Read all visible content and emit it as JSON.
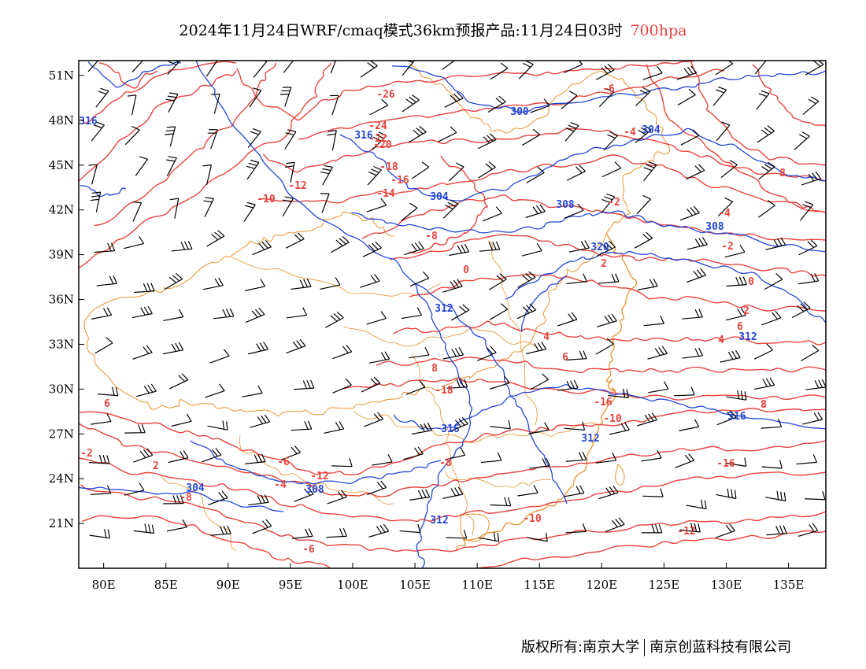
{
  "title": {
    "main": "2024年11月24日WRF/cmaq模式36km预报产品:11月24日03时",
    "level": "700hpa"
  },
  "footer": {
    "copyright": "版权所有:南京大学",
    "company": "南京创蓝科技有限公司"
  },
  "colors": {
    "temperature": "#e8423c",
    "geopotential": "#2446d8",
    "border": "#e8922c",
    "wind": "#000000"
  },
  "map": {
    "lon_range": [
      78,
      138
    ],
    "lat_range": [
      18,
      52
    ],
    "lon_ticks": [
      "80E",
      "85E",
      "90E",
      "95E",
      "100E",
      "105E",
      "110E",
      "115E",
      "120E",
      "125E",
      "130E",
      "135E"
    ],
    "lat_ticks": [
      "51N",
      "48N",
      "45N",
      "42N",
      "39N",
      "36N",
      "33N",
      "30N",
      "27N",
      "24N",
      "21N"
    ],
    "temperature_labels": [
      "-26",
      "-24",
      "-22",
      "-20",
      "-18",
      "-16",
      "-14",
      "-12",
      "-10",
      "-8",
      "-6",
      "-4",
      "-2",
      "0",
      "2",
      "4",
      "6",
      "8",
      "-18",
      "-16",
      "-10",
      "-12",
      "-8",
      "-6",
      "-4",
      "-2",
      "0",
      "2",
      "4",
      "6",
      "8",
      "-16",
      "-12",
      "-10",
      "-8",
      "-6",
      "-4",
      "-2",
      "2",
      "6",
      "8",
      "6",
      "-6",
      "6",
      "8"
    ],
    "height_labels": [
      "300",
      "304",
      "308",
      "312",
      "316",
      "320",
      "304",
      "308",
      "312",
      "316",
      "304",
      "308",
      "312",
      "312",
      "316",
      "316"
    ]
  }
}
